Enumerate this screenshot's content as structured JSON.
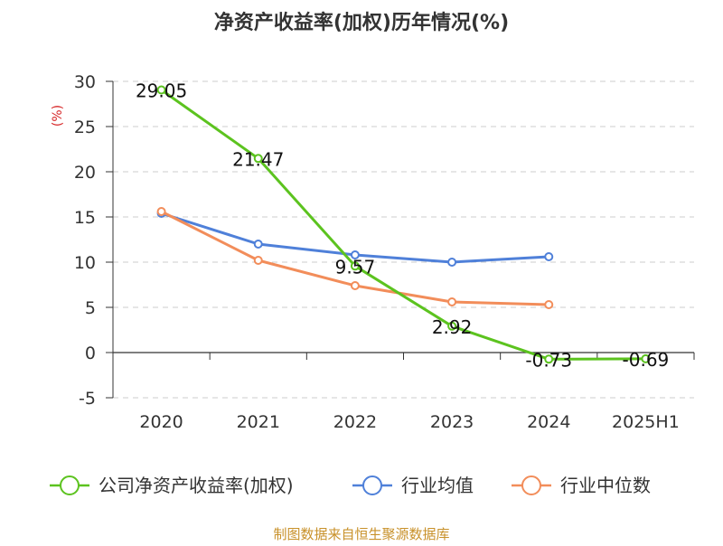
{
  "chart_data": {
    "type": "line",
    "title": "净资产收益率(加权)历年情况(%)",
    "ylabel": "(%)",
    "categories": [
      "2020",
      "2021",
      "2022",
      "2023",
      "2024",
      "2025H1"
    ],
    "ylim": [
      -5,
      30
    ],
    "yticks": [
      30,
      25,
      20,
      15,
      10,
      5,
      0,
      -5
    ],
    "grid": true,
    "legend_position": "bottom",
    "series": [
      {
        "name": "公司净资产收益率(加权)",
        "color": "#5cc31f",
        "values": [
          29.05,
          21.47,
          9.57,
          2.92,
          -0.73,
          -0.69
        ],
        "labels": [
          "29.05",
          "21.47",
          "9.57",
          "2.92",
          "-0.73",
          "-0.69"
        ]
      },
      {
        "name": "行业均值",
        "color": "#4f80d9",
        "values": [
          15.4,
          12.0,
          10.8,
          10.0,
          10.6,
          null
        ]
      },
      {
        "name": "行业中位数",
        "color": "#f28d5a",
        "values": [
          15.6,
          10.2,
          7.4,
          5.6,
          5.3,
          null
        ]
      }
    ]
  },
  "source": "制图数据来自恒生聚源数据库"
}
